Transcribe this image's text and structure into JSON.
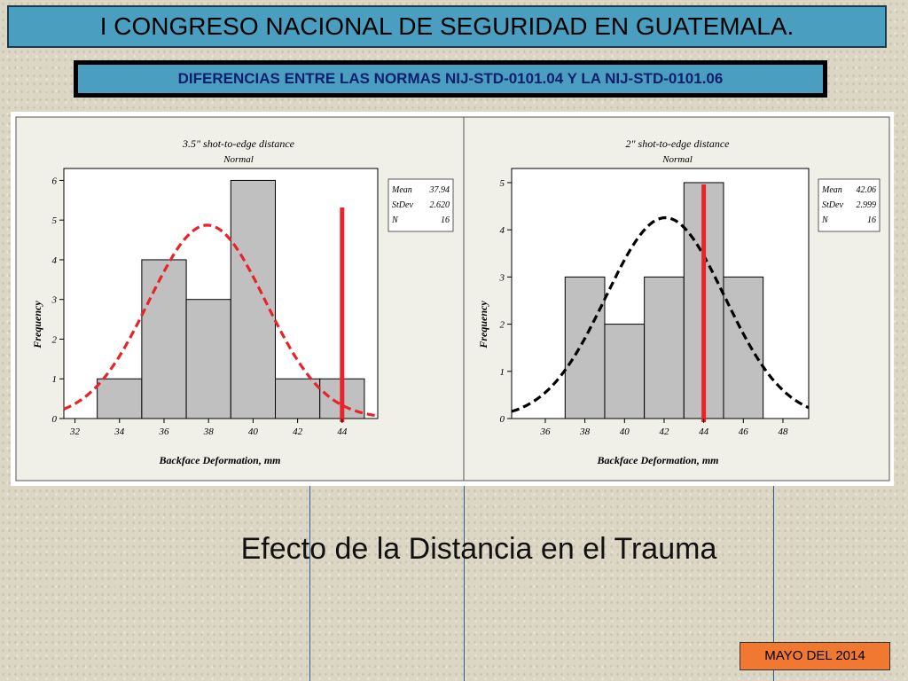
{
  "slide": {
    "title": "I CONGRESO NACIONAL  DE SEGURIDAD EN  GUATEMALA.",
    "subtitle": "DIFERENCIAS ENTRE LAS NORMAS NIJ-STD-0101.04 Y LA NIJ-STD-0101.06",
    "caption": "Efecto de la Distancia en el Trauma",
    "date": "MAYO DEL 2014"
  },
  "colors": {
    "bar": "#c0c0c0",
    "left_curve": "#e8232a",
    "right_curve": "#000000",
    "ref_line": "#e8232a",
    "title_bg": "#4a9fc0",
    "date_bg": "#f07830"
  },
  "chart_data": [
    {
      "type": "bar",
      "title": "3.5\" shot-to-edge distance",
      "subtitle": "Normal",
      "xlabel": "Backface Deformation, mm",
      "ylabel": "Frequency",
      "xlim": [
        31.5,
        45.6
      ],
      "ylim": [
        0,
        6.3
      ],
      "xticks": [
        32,
        34,
        36,
        38,
        40,
        42,
        44
      ],
      "yticks": [
        0,
        1,
        2,
        3,
        4,
        5,
        6
      ],
      "bin_edges": [
        33,
        35,
        37,
        39,
        41,
        43,
        45
      ],
      "values": [
        1,
        4,
        3,
        6,
        1,
        1
      ],
      "fit": {
        "type": "normal",
        "mean": 37.94,
        "stdev": 2.62,
        "n": 16,
        "style": "dashed"
      },
      "reference_line_x": 44,
      "stats": [
        {
          "label": "Mean",
          "value": "37.94"
        },
        {
          "label": "StDev",
          "value": "2.620"
        },
        {
          "label": "N",
          "value": "16"
        }
      ]
    },
    {
      "type": "bar",
      "title": "2\" shot-to-edge distance",
      "subtitle": "Normal",
      "xlabel": "Backface Deformation, mm",
      "ylabel": "Frequency",
      "xlim": [
        34.3,
        49.3
      ],
      "ylim": [
        0,
        5.3
      ],
      "xticks": [
        36,
        38,
        40,
        42,
        44,
        46,
        48
      ],
      "yticks": [
        0,
        1,
        2,
        3,
        4,
        5
      ],
      "bin_edges": [
        37,
        39,
        41,
        43,
        45,
        47
      ],
      "values": [
        3,
        2,
        3,
        5,
        3
      ],
      "fit": {
        "type": "normal",
        "mean": 42.06,
        "stdev": 2.999,
        "n": 16,
        "style": "dashed"
      },
      "reference_line_x": 44,
      "stats": [
        {
          "label": "Mean",
          "value": "42.06"
        },
        {
          "label": "StDev",
          "value": "2.999"
        },
        {
          "label": "N",
          "value": "16"
        }
      ]
    }
  ]
}
